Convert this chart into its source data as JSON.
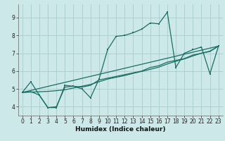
{
  "xlabel": "Humidex (Indice chaleur)",
  "bg_color": "#cce8e8",
  "grid_color": "#aacccc",
  "line_color": "#1a6e64",
  "xlim": [
    -0.5,
    23.5
  ],
  "ylim": [
    3.5,
    9.75
  ],
  "xticks": [
    0,
    1,
    2,
    3,
    4,
    5,
    6,
    7,
    8,
    9,
    10,
    11,
    12,
    13,
    14,
    15,
    16,
    17,
    18,
    19,
    20,
    21,
    22,
    23
  ],
  "yticks": [
    4,
    5,
    6,
    7,
    8,
    9
  ],
  "line1_x": [
    0,
    1,
    2,
    3,
    4,
    5,
    6,
    7,
    8,
    9,
    10,
    11,
    12,
    13,
    14,
    15,
    16,
    17,
    18,
    19,
    20,
    21,
    22,
    23
  ],
  "line1_y": [
    4.8,
    5.4,
    4.65,
    3.95,
    3.95,
    5.2,
    5.15,
    5.0,
    4.5,
    5.55,
    7.2,
    7.95,
    8.0,
    8.15,
    8.35,
    8.7,
    8.65,
    9.3,
    6.2,
    7.0,
    7.2,
    7.35,
    5.85,
    7.4
  ],
  "line2_x": [
    0,
    1,
    2,
    3,
    4,
    5,
    6,
    7,
    8,
    9,
    10,
    11,
    12,
    13,
    14,
    15,
    16,
    17,
    18,
    19,
    20,
    21,
    22,
    23
  ],
  "line2_y": [
    4.8,
    4.85,
    4.65,
    3.95,
    4.0,
    5.1,
    5.15,
    5.1,
    5.2,
    5.5,
    5.6,
    5.7,
    5.8,
    5.9,
    6.0,
    6.2,
    6.3,
    6.5,
    6.6,
    6.7,
    6.9,
    7.0,
    7.1,
    7.4
  ],
  "line3_x": [
    0,
    23
  ],
  "line3_y": [
    4.8,
    7.4
  ],
  "line4_x": [
    0,
    1,
    2,
    3,
    4,
    5,
    6,
    7,
    8,
    9,
    10,
    11,
    12,
    13,
    14,
    15,
    16,
    17,
    18,
    19,
    20,
    21,
    22,
    23
  ],
  "line4_y": [
    4.8,
    4.82,
    4.84,
    4.86,
    4.9,
    4.95,
    5.05,
    5.15,
    5.25,
    5.4,
    5.55,
    5.65,
    5.75,
    5.87,
    5.98,
    6.1,
    6.22,
    6.4,
    6.55,
    6.68,
    6.85,
    7.0,
    7.12,
    7.4
  ]
}
